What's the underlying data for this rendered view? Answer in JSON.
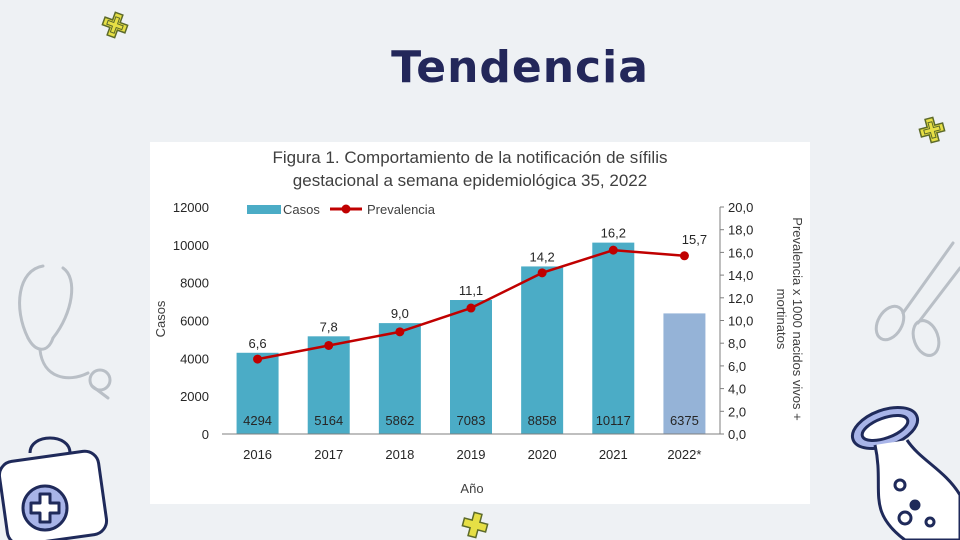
{
  "slide": {
    "title": "Tendencia"
  },
  "chart_data": {
    "type": "bar+line",
    "title_line1": "Figura 1. Comportamiento de la notificación de sífilis",
    "title_line2": "gestacional a semana epidemiológica 35, 2022",
    "categories": [
      "2016",
      "2017",
      "2018",
      "2019",
      "2020",
      "2021",
      "2022*"
    ],
    "series": [
      {
        "name": "Casos",
        "kind": "bar",
        "axis": "left",
        "values": [
          4294,
          5164,
          5862,
          7083,
          8858,
          10117,
          6375
        ],
        "colors": [
          "#4bacc6",
          "#4bacc6",
          "#4bacc6",
          "#4bacc6",
          "#4bacc6",
          "#4bacc6",
          "#95b3d7"
        ]
      },
      {
        "name": "Prevalencia",
        "kind": "line",
        "axis": "right",
        "values": [
          6.6,
          7.8,
          9.0,
          11.1,
          14.2,
          16.2,
          15.7
        ],
        "labels": [
          "6,6",
          "7,8",
          "9,0",
          "11,1",
          "14,2",
          "16,2",
          "15,7"
        ],
        "color": "#c00000"
      }
    ],
    "xlabel": "Año",
    "ylabel": "Casos",
    "y2label_line1": "Prevalencia x 1000 nacidos vivos +",
    "y2label_line2": "mortinatos",
    "ylim": [
      0,
      12000
    ],
    "y_ticks": [
      "0",
      "2000",
      "4000",
      "6000",
      "8000",
      "10000",
      "12000"
    ],
    "y2lim": [
      0,
      20
    ],
    "y2_ticks": [
      "0,0",
      "2,0",
      "4,0",
      "6,0",
      "8,0",
      "10,0",
      "12,0",
      "14,0",
      "16,0",
      "18,0",
      "20,0"
    ],
    "legend_position": "top-left",
    "grid": false
  },
  "icons": {
    "sparkle": "sparkle-icon",
    "stethoscope": "stethoscope-icon",
    "scissors": "scissors-icon",
    "first_aid_kit": "first-aid-kit-icon",
    "flask": "flask-icon"
  }
}
